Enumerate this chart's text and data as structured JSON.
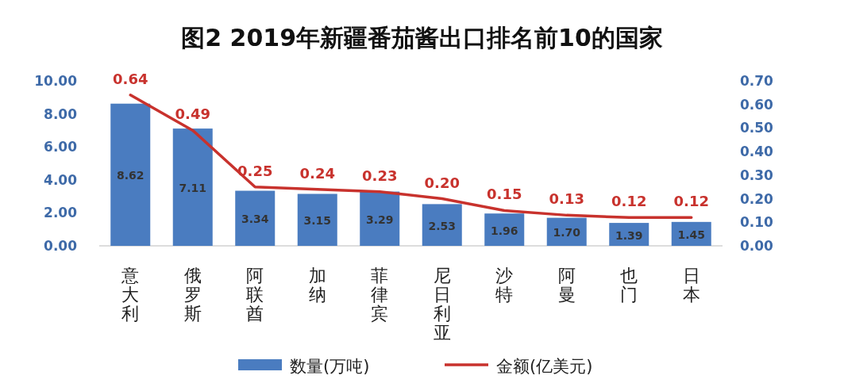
{
  "chart_data": {
    "type": "bar",
    "title": "图2  2019年新疆番茄酱出口排名前10的国家",
    "categories": [
      "意大利",
      "俄罗斯",
      "阿联酋",
      "加纳",
      "菲律宾",
      "尼日利亚",
      "沙特",
      "阿曼",
      "也门",
      "日本"
    ],
    "series": [
      {
        "name": "数量(万吨)",
        "color": "#4a7cc0",
        "values": [
          8.62,
          7.11,
          3.34,
          3.15,
          3.29,
          2.53,
          1.96,
          1.7,
          1.39,
          1.45
        ],
        "value_labels": [
          "8.62",
          "7.11",
          "3.34",
          "3.15",
          "3.29",
          "2.53",
          "1.96",
          "1.70",
          "1.39",
          "1.45"
        ]
      },
      {
        "name": "金额(亿美元)",
        "type": "line",
        "axis": "y2",
        "color": "#c8322d",
        "values": [
          0.64,
          0.49,
          0.25,
          0.24,
          0.23,
          0.2,
          0.15,
          0.13,
          0.12,
          0.12
        ],
        "value_labels": [
          "0.64",
          "0.49",
          "0.25",
          "0.24",
          "0.23",
          "0.20",
          "0.15",
          "0.13",
          "0.12",
          "0.12"
        ]
      }
    ],
    "ylim": [
      0,
      10
    ],
    "yticks": [
      {
        "value": 0,
        "label": "0.00"
      },
      {
        "value": 2,
        "label": "2.00"
      },
      {
        "value": 4,
        "label": "4.00"
      },
      {
        "value": 6,
        "label": "6.00"
      },
      {
        "value": 8,
        "label": "8.00"
      },
      {
        "value": 10,
        "label": "10.00"
      }
    ],
    "y2lim": [
      0,
      0.7
    ],
    "y2ticks": [
      {
        "value": 0,
        "label": "0.00"
      },
      {
        "value": 0.1,
        "label": "0.10"
      },
      {
        "value": 0.2,
        "label": "0.20"
      },
      {
        "value": 0.3,
        "label": "0.30"
      },
      {
        "value": 0.4,
        "label": "0.40"
      },
      {
        "value": 0.5,
        "label": "0.50"
      },
      {
        "value": 0.6,
        "label": "0.60"
      },
      {
        "value": 0.7,
        "label": "0.70"
      }
    ],
    "legend": "bottom"
  }
}
